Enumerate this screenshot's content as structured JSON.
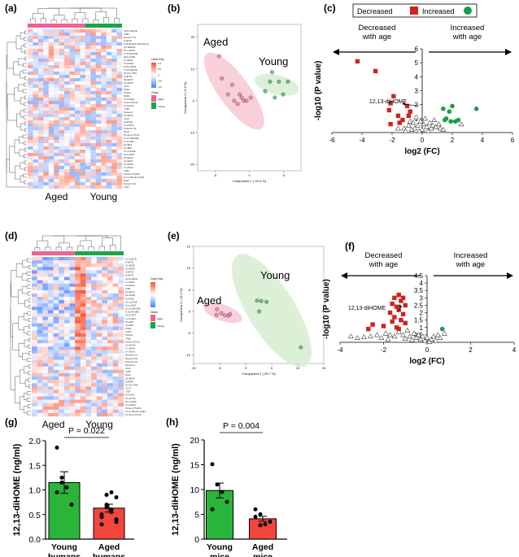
{
  "colors": {
    "aged": "#f06292",
    "young": "#1aa64a",
    "decreased": "#d0231d",
    "increased": "#1c9b4c",
    "bar_green": "#2bb43a",
    "bar_red": "#f2453d",
    "aged_ellipse": "#f7c8d3",
    "young_ellipse": "#d6edd0"
  },
  "panels": {
    "a": {
      "label": "(a)",
      "group_left": "Aged",
      "group_right": "Young",
      "legend_title": "Color Key",
      "legend_class": "Class",
      "legend_aged": "Aged",
      "legend_young": "Young",
      "legend_ticks": [
        "1.0",
        "0.5",
        "0",
        "-0.5",
        "-1.0"
      ],
      "rows": [
        "15(S)-HpETE",
        "LTB4",
        "Resolvin D1",
        "9-HETE",
        "8,15-diHETE (Dihydroxy)",
        "5,6-diHETE",
        "15-oxoETE",
        "9,10-DiHOME",
        "9(S)-HODE",
        "11-HETE",
        "13-HODE",
        "12(S)-HETE",
        "17,18-EpETE",
        "20-OH-LTB4",
        "5-HETE",
        "18-HETE",
        "16-HETE",
        "LTC4",
        "PGE2",
        "PGF2a",
        "PGD2",
        "14,15-EET",
        "6-keto PGF1a",
        "12-HHTrE",
        "TXB2",
        "Maresin 1",
        "15-HETE",
        "LXA4",
        "9-HOTrE",
        "5-oxoETE",
        "Protectin D1",
        "PGJ2",
        "15-deoxy PGJ2",
        "12,13-diHOME",
        "11,12-EET",
        "8,9-EET",
        "5,6-EET",
        "13-oxoODE",
        "9-oxoODE",
        "20-HETE",
        "19-HETE",
        "14-HDHA",
        "17-HDHA",
        "LXB4",
        "Tetranor PGDM",
        "13,14-dihydro PGE1",
        "RvE1",
        "Resolvin D2",
        "LTE4"
      ]
    },
    "b": {
      "label": "(b)",
      "label_aged": "Aged",
      "label_young": "Young",
      "xlabel": "Component 1 ( 33.4 %)",
      "ylabel": "Component 2 ( 9.4 %)"
    },
    "c": {
      "label": "(c)",
      "legend_decreased": "Decreased",
      "legend_increased": "Increased",
      "arrow_left": "Decreased\nwith age",
      "arrow_right": "Increased\nwith age",
      "annotation": "12,13-diHOME",
      "xlabel": "log2 (FC)",
      "ylabel": "-log10 (P value)"
    },
    "d": {
      "label": "(d)",
      "group_left": "Aged",
      "group_right": "Young",
      "legend_title": "Color Key",
      "legend_class": "Class",
      "legend_aged": "Aged",
      "legend_young": "Young",
      "rows": [
        "12-oxoETE",
        "5-HETE",
        "12-HEPE",
        "15-HEPE",
        "9-HETE",
        "8-HETE",
        "12(S)-HETE",
        "11-HETE",
        "15-HETE",
        "LTB4",
        "20-HETE",
        "13-HODE",
        "9-HODE",
        "13-oxoODE",
        "9-oxoODE",
        "12,13-diHOME",
        "9,10-diHOME",
        "14,15-EET",
        "11,12-EET",
        "8,9-EET",
        "5,6-EET",
        "PGE2",
        "PGD2",
        "PGF2a",
        "TXB2",
        "6-keto PGF1a",
        "12-HHTrE",
        "17-HDHA",
        "14-HDHA",
        "Resolvin D1",
        "Resolvin D2",
        "Protectin D1",
        "Maresin 1",
        "LXA4",
        "LXB4",
        "RvE1",
        "18-HEPE",
        "5-HEPE",
        "20-OH-LTB4",
        "LTC4",
        "LTE4",
        "9-HOTrE",
        "13-HOTrE",
        "15-oxoETE",
        "5-oxoETE",
        "Tetranor PGDM",
        "13,14-dihydro PGE1",
        "15-deoxy PGJ2"
      ]
    },
    "e": {
      "label": "(e)",
      "label_aged": "Aged",
      "label_young": "Young",
      "xlabel": "Component 1 ( 29.7 %)",
      "ylabel": "Component 2 ( 12.0 %)"
    },
    "f": {
      "label": "(f)",
      "arrow_left": "Decreased\nwith age",
      "arrow_right": "Increased\nwith age",
      "annotation": "12,13-diHOME",
      "xlabel": "log2 (FC)",
      "ylabel": "-log10 (P value)"
    },
    "g": {
      "label": "(g)",
      "pvalue": "P = 0.022",
      "ylabel": "12,13-diHOME (ng/ml)",
      "cat1": "Young\nhumans",
      "cat2": "Aged\nhumans"
    },
    "h": {
      "label": "(h)",
      "pvalue": "P = 0.004",
      "ylabel": "12,13-diHOME (ng/ml)",
      "cat1": "Young\nmice",
      "cat2": "Aged\nmice"
    }
  },
  "chart_data": [
    {
      "type": "heatmap",
      "panel": "a",
      "columns_aged": 11,
      "columns_young": 7,
      "rows": 49,
      "value_range": [
        -1.0,
        1.0
      ]
    },
    {
      "type": "scatter",
      "panel": "b",
      "xlabel": "Component 1 ( 33.4 %)",
      "ylabel": "Component 2 ( 9.4 %)",
      "xlim": [
        -7.5,
        7.5
      ],
      "ylim": [
        -22,
        24
      ],
      "xticks": [
        "-5",
        "0",
        "5"
      ],
      "yticks": [
        "20",
        "10",
        "0",
        "-10",
        "-20"
      ],
      "series": [
        {
          "name": "Aged",
          "points": [
            [
              -4.4,
              14
            ],
            [
              -4.0,
              7
            ],
            [
              -3.1,
              2
            ],
            [
              -2.5,
              5
            ],
            [
              -2.2,
              0
            ],
            [
              -1.7,
              -1
            ],
            [
              -1.4,
              2
            ],
            [
              -0.8,
              0
            ],
            [
              -0.4,
              0
            ],
            [
              0.2,
              1
            ],
            [
              -1.1,
              1
            ]
          ]
        },
        {
          "name": "Young",
          "points": [
            [
              2.3,
              3
            ],
            [
              3.3,
              9
            ],
            [
              3.7,
              1
            ],
            [
              4.3,
              6
            ],
            [
              5.6,
              6
            ],
            [
              3.0,
              6
            ],
            [
              4.9,
              2
            ]
          ]
        }
      ]
    },
    {
      "type": "scatter",
      "panel": "c",
      "xlabel": "log2 (FC)",
      "ylabel": "-log10 (P value)",
      "xlim": [
        -6,
        6
      ],
      "ylim": [
        0,
        6
      ],
      "xticks": [
        "-6",
        "-4",
        "-2",
        "0",
        "2",
        "4",
        "6"
      ],
      "yticks": [
        "1",
        "2",
        "3",
        "4",
        "5",
        "6"
      ],
      "series": [
        {
          "name": "Decreased",
          "points": [
            [
              -4.3,
              5.1
            ],
            [
              -3.1,
              4.4
            ],
            [
              -1.9,
              2.6
            ],
            [
              -1.0,
              1.9
            ],
            [
              -2.2,
              1.6
            ],
            [
              -0.8,
              1.5
            ],
            [
              -1.6,
              1.2
            ],
            [
              -1.3,
              0.9
            ],
            [
              -2.1,
              2.1
            ],
            [
              -0.9,
              1.2
            ],
            [
              -1.5,
              0.7
            ],
            [
              -2.1,
              0.6
            ]
          ]
        },
        {
          "name": "Increased",
          "points": [
            [
              2.0,
              1.9
            ],
            [
              1.4,
              1.7
            ],
            [
              1.8,
              1.5
            ],
            [
              3.6,
              1.7
            ],
            [
              1.6,
              1.0
            ],
            [
              2.4,
              0.9
            ],
            [
              1.5,
              0.9
            ],
            [
              1.9,
              0.8
            ],
            [
              2.2,
              0.8
            ]
          ]
        },
        {
          "name": "NS",
          "points": [
            [
              -0.4,
              1.1
            ],
            [
              0.2,
              1.0
            ],
            [
              -0.9,
              0.5
            ],
            [
              -0.6,
              0.7
            ],
            [
              -0.3,
              0.5
            ],
            [
              0.5,
              0.7
            ],
            [
              0.8,
              0.9
            ],
            [
              1.1,
              0.6
            ],
            [
              -1.2,
              0.3
            ],
            [
              -0.5,
              0.3
            ],
            [
              0.3,
              0.4
            ],
            [
              0.9,
              0.4
            ],
            [
              -0.7,
              0.2
            ],
            [
              0.0,
              0.2
            ],
            [
              0.6,
              0.3
            ],
            [
              -0.2,
              0.1
            ],
            [
              0.4,
              0.1
            ],
            [
              1.2,
              0.3
            ],
            [
              -1.6,
              0.3
            ],
            [
              -1.1,
              0.1
            ],
            [
              1.4,
              0.2
            ],
            [
              2.6,
              0.6
            ],
            [
              0.1,
              0.6
            ],
            [
              -0.1,
              0.8
            ],
            [
              0.7,
              0.5
            ],
            [
              -0.8,
              0.8
            ]
          ]
        }
      ],
      "annotation": {
        "text": "12,13-diHOME",
        "point": [
          -1.0,
          1.9
        ]
      }
    },
    {
      "type": "heatmap",
      "panel": "d",
      "columns_aged": 8,
      "columns_young": 9,
      "rows": 48,
      "value_range": [
        -1.5,
        1.5
      ]
    },
    {
      "type": "scatter",
      "panel": "e",
      "xlabel": "Component 1 ( 29.7 %)",
      "ylabel": "Component 2 ( 12.0 %)",
      "xlim": [
        -10,
        15
      ],
      "ylim": [
        -12,
        15
      ],
      "xticks": [
        "-10",
        "-5",
        "0",
        "5",
        "10",
        "15"
      ],
      "yticks": [
        "15",
        "10",
        "5",
        "0",
        "-5",
        "-10"
      ],
      "series": [
        {
          "name": "Aged",
          "points": [
            [
              -5.5,
              0.5
            ],
            [
              -5.6,
              -0.8
            ],
            [
              -4.7,
              -0.4
            ],
            [
              -4.0,
              -0.9
            ],
            [
              -3.3,
              -1.0
            ],
            [
              -3.0,
              -0.6
            ]
          ]
        },
        {
          "name": "Young",
          "points": [
            [
              2.2,
              2.5
            ],
            [
              3.0,
              2.4
            ],
            [
              4.0,
              2.2
            ],
            [
              2.6,
              0.0
            ],
            [
              10.6,
              -8.3
            ]
          ]
        }
      ]
    },
    {
      "type": "scatter",
      "panel": "f",
      "xlabel": "log2 (FC)",
      "ylabel": "-log10 (P value)",
      "xlim": [
        -4,
        4
      ],
      "ylim": [
        0,
        4.5
      ],
      "xticks": [
        "-4",
        "-2",
        "0",
        "2",
        "4"
      ],
      "yticks": [
        "0.5",
        "1",
        "1.5",
        "2",
        "2.5",
        "3",
        "3.5",
        "4",
        "4.5"
      ],
      "series": [
        {
          "name": "Decreased",
          "points": [
            [
              -1.3,
              3.2
            ],
            [
              -1.5,
              3.0
            ],
            [
              -1.1,
              3.0
            ],
            [
              -1.2,
              2.8
            ],
            [
              -1.6,
              2.6
            ],
            [
              -1.0,
              2.5
            ],
            [
              -1.4,
              2.4
            ],
            [
              -1.3,
              2.2
            ],
            [
              -1.7,
              2.0
            ],
            [
              -1.1,
              1.9
            ],
            [
              -1.5,
              1.7
            ],
            [
              -1.2,
              1.5
            ],
            [
              -1.6,
              1.4
            ],
            [
              -1.0,
              1.3
            ],
            [
              -2.5,
              1.2
            ],
            [
              -2.0,
              1.1
            ],
            [
              -1.4,
              1.0
            ],
            [
              -1.3,
              0.9
            ],
            [
              -2.7,
              0.9
            ]
          ]
        },
        {
          "name": "Increased",
          "points": [
            [
              0.7,
              0.9
            ]
          ]
        },
        {
          "name": "NS",
          "points": [
            [
              -3.5,
              0.4
            ],
            [
              -3.2,
              0.3
            ],
            [
              -2.9,
              0.35
            ],
            [
              -2.6,
              0.4
            ],
            [
              -2.3,
              0.5
            ],
            [
              -2.1,
              0.3
            ],
            [
              -1.9,
              0.6
            ],
            [
              -1.7,
              0.5
            ],
            [
              -1.5,
              0.4
            ],
            [
              -1.3,
              0.7
            ],
            [
              -1.1,
              0.5
            ],
            [
              -0.9,
              0.8
            ],
            [
              -0.8,
              0.4
            ],
            [
              -0.6,
              0.6
            ],
            [
              -0.5,
              0.3
            ],
            [
              -0.4,
              0.5
            ],
            [
              -0.3,
              0.2
            ],
            [
              -0.2,
              0.4
            ],
            [
              -0.1,
              0.1
            ],
            [
              0.0,
              0.3
            ],
            [
              0.1,
              0.05
            ],
            [
              0.2,
              0.2
            ],
            [
              0.3,
              0.4
            ],
            [
              0.5,
              0.5
            ],
            [
              0.6,
              0.3
            ],
            [
              0.4,
              0.1
            ],
            [
              -0.7,
              0.15
            ],
            [
              -1.0,
              0.25
            ],
            [
              -1.8,
              0.2
            ],
            [
              0.8,
              0.6
            ]
          ]
        }
      ],
      "annotation": {
        "text": "12,13-diHOME",
        "point": [
          -1.1,
          2.3
        ]
      }
    },
    {
      "type": "bar",
      "panel": "g",
      "categories": [
        "Young\nhumans",
        "Aged\nhumans"
      ],
      "values": [
        1.15,
        0.63
      ],
      "errors": [
        0.22,
        0.08
      ],
      "ylim": [
        0,
        2.0
      ],
      "yticks": [
        "0.0",
        "0.5",
        "1.0",
        "1.5",
        "2.0"
      ],
      "ylabel": "12,13-diHOME (ng/ml)",
      "pvalue": "P = 0.022",
      "points": [
        [
          1.86,
          1.25,
          1.05,
          0.7,
          0.95,
          1.15
        ],
        [
          0.45,
          0.9,
          0.6,
          0.4,
          0.3,
          0.7,
          0.55,
          0.85,
          0.5,
          0.65,
          0.95,
          0.35
        ]
      ]
    },
    {
      "type": "bar",
      "panel": "h",
      "categories": [
        "Young\nmice",
        "Aged\nmice"
      ],
      "values": [
        9.8,
        4.1
      ],
      "errors": [
        1.5,
        0.5
      ],
      "ylim": [
        0,
        20
      ],
      "yticks": [
        "0",
        "5",
        "10",
        "15",
        "20"
      ],
      "ylabel": "12,13-diHOME (ng/ml)",
      "pvalue": "P = 0.004",
      "points": [
        [
          15.1,
          11.0,
          9.5,
          7.5,
          6.0
        ],
        [
          6.0,
          5.0,
          3.0,
          3.5,
          4.5,
          2.8
        ]
      ]
    }
  ]
}
